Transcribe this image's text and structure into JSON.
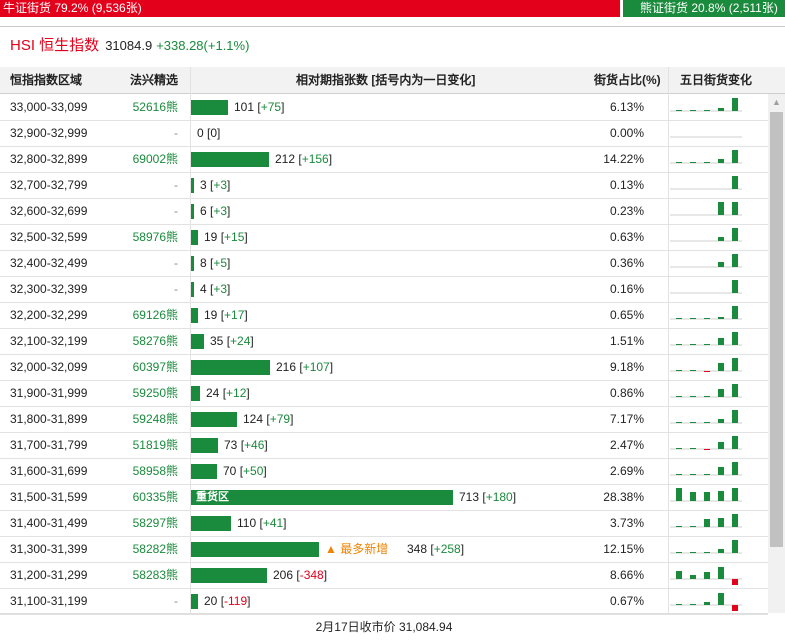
{
  "topbar": {
    "bull_text": "牛证街货 79.2% (9,536张)",
    "bear_text": "熊证街货 20.8% (2,511张)",
    "bull_color": "#e3001b",
    "bear_color": "#1a8a3c"
  },
  "title": {
    "name": "HSI 恒生指数",
    "price": "31084.9",
    "change": "+338.28(+1.1%)"
  },
  "header": {
    "range": "恒指指数区域",
    "pick": "法兴精选",
    "bar": "相对期指张数 [括号内为一日变化]",
    "pct": "街货占比(%)",
    "spark": "五日街货变化"
  },
  "rows": [
    {
      "range": "33,000-33,099",
      "code": "52616熊",
      "count": "101",
      "delta": "+75",
      "dsign": "pos",
      "pct": "6.13%",
      "value": 101,
      "spark": [
        0.05,
        0.05,
        0.05,
        0.2,
        1.0
      ]
    },
    {
      "range": "32,900-32,999",
      "code": "-",
      "count": "0",
      "delta": "0",
      "dsign": "none",
      "pct": "0.00%",
      "value": 0,
      "spark": [
        0,
        0,
        0,
        0,
        0
      ]
    },
    {
      "range": "32,800-32,899",
      "code": "69002熊",
      "count": "212",
      "delta": "+156",
      "dsign": "pos",
      "pct": "14.22%",
      "value": 212,
      "spark": [
        0.05,
        0.05,
        0.1,
        0.3,
        1.0
      ]
    },
    {
      "range": "32,700-32,799",
      "code": "-",
      "count": "3",
      "delta": "+3",
      "dsign": "pos",
      "pct": "0.13%",
      "value": 3,
      "spark": [
        0,
        0,
        0,
        0,
        1.0
      ]
    },
    {
      "range": "32,600-32,699",
      "code": "-",
      "count": "6",
      "delta": "+3",
      "dsign": "pos",
      "pct": "0.23%",
      "value": 6,
      "spark": [
        0,
        0,
        0,
        1.0,
        1.0
      ]
    },
    {
      "range": "32,500-32,599",
      "code": "58976熊",
      "count": "19",
      "delta": "+15",
      "dsign": "pos",
      "pct": "0.63%",
      "value": 19,
      "spark": [
        0,
        0,
        0,
        0.3,
        1.0
      ]
    },
    {
      "range": "32,400-32,499",
      "code": "-",
      "count": "8",
      "delta": "+5",
      "dsign": "pos",
      "pct": "0.36%",
      "value": 8,
      "spark": [
        0,
        0,
        0,
        0.4,
        1.0
      ]
    },
    {
      "range": "32,300-32,399",
      "code": "-",
      "count": "4",
      "delta": "+3",
      "dsign": "pos",
      "pct": "0.16%",
      "value": 4,
      "spark": [
        0,
        0,
        0,
        0,
        1.0
      ]
    },
    {
      "range": "32,200-32,299",
      "code": "69126熊",
      "count": "19",
      "delta": "+17",
      "dsign": "pos",
      "pct": "0.65%",
      "value": 19,
      "spark": [
        0.05,
        0.05,
        0.05,
        0.15,
        1.0
      ]
    },
    {
      "range": "32,100-32,199",
      "code": "58276熊",
      "count": "35",
      "delta": "+24",
      "dsign": "pos",
      "pct": "1.51%",
      "value": 35,
      "spark": [
        0.05,
        0.05,
        0.1,
        0.5,
        1.0
      ]
    },
    {
      "range": "32,000-32,099",
      "code": "60397熊",
      "count": "216",
      "delta": "+107",
      "dsign": "pos",
      "pct": "9.18%",
      "value": 216,
      "spark": [
        0.05,
        0.1,
        -0.1,
        0.6,
        1.0
      ]
    },
    {
      "range": "31,900-31,999",
      "code": "59250熊",
      "count": "24",
      "delta": "+12",
      "dsign": "pos",
      "pct": "0.86%",
      "value": 24,
      "spark": [
        0.05,
        0.05,
        0.05,
        0.6,
        1.0
      ]
    },
    {
      "range": "31,800-31,899",
      "code": "59248熊",
      "count": "124",
      "delta": "+79",
      "dsign": "pos",
      "pct": "7.17%",
      "value": 124,
      "spark": [
        0.05,
        0.05,
        0.1,
        0.3,
        1.0
      ]
    },
    {
      "range": "31,700-31,799",
      "code": "51819熊",
      "count": "73",
      "delta": "+46",
      "dsign": "pos",
      "pct": "2.47%",
      "value": 73,
      "spark": [
        0.05,
        0.05,
        -0.1,
        0.5,
        1.0
      ]
    },
    {
      "range": "31,600-31,699",
      "code": "58958熊",
      "count": "70",
      "delta": "+50",
      "dsign": "pos",
      "pct": "2.69%",
      "value": 70,
      "spark": [
        0.05,
        0.05,
        0.05,
        0.6,
        1.0
      ]
    },
    {
      "range": "31,500-31,599",
      "code": "60335熊",
      "count": "713",
      "delta": "+180",
      "dsign": "pos",
      "pct": "28.38%",
      "value": 713,
      "tag": "重货区",
      "spark": [
        1.0,
        0.7,
        0.7,
        0.75,
        1.0
      ]
    },
    {
      "range": "31,400-31,499",
      "code": "58297熊",
      "count": "110",
      "delta": "+41",
      "dsign": "pos",
      "pct": "3.73%",
      "value": 110,
      "spark": [
        0.05,
        0.05,
        0.6,
        0.7,
        1.0
      ]
    },
    {
      "range": "31,300-31,399",
      "code": "58282熊",
      "count": "348",
      "delta": "+258",
      "dsign": "pos",
      "pct": "12.15%",
      "value": 348,
      "marker": "最多新增",
      "spark": [
        0.05,
        0.05,
        0.05,
        0.3,
        1.0
      ]
    },
    {
      "range": "31,200-31,299",
      "code": "58283熊",
      "count": "206",
      "delta": "-348",
      "dsign": "neg",
      "pct": "8.66%",
      "value": 206,
      "spark": [
        0.6,
        0.3,
        0.5,
        0.9,
        -0.8
      ]
    },
    {
      "range": "31,100-31,199",
      "code": "-",
      "count": "20",
      "delta": "-119",
      "dsign": "neg",
      "pct": "0.67%",
      "value": 20,
      "spark": [
        0.05,
        0.05,
        0.2,
        0.9,
        -0.7
      ]
    }
  ],
  "footer": "2月17日收市价 31,084.94"
}
